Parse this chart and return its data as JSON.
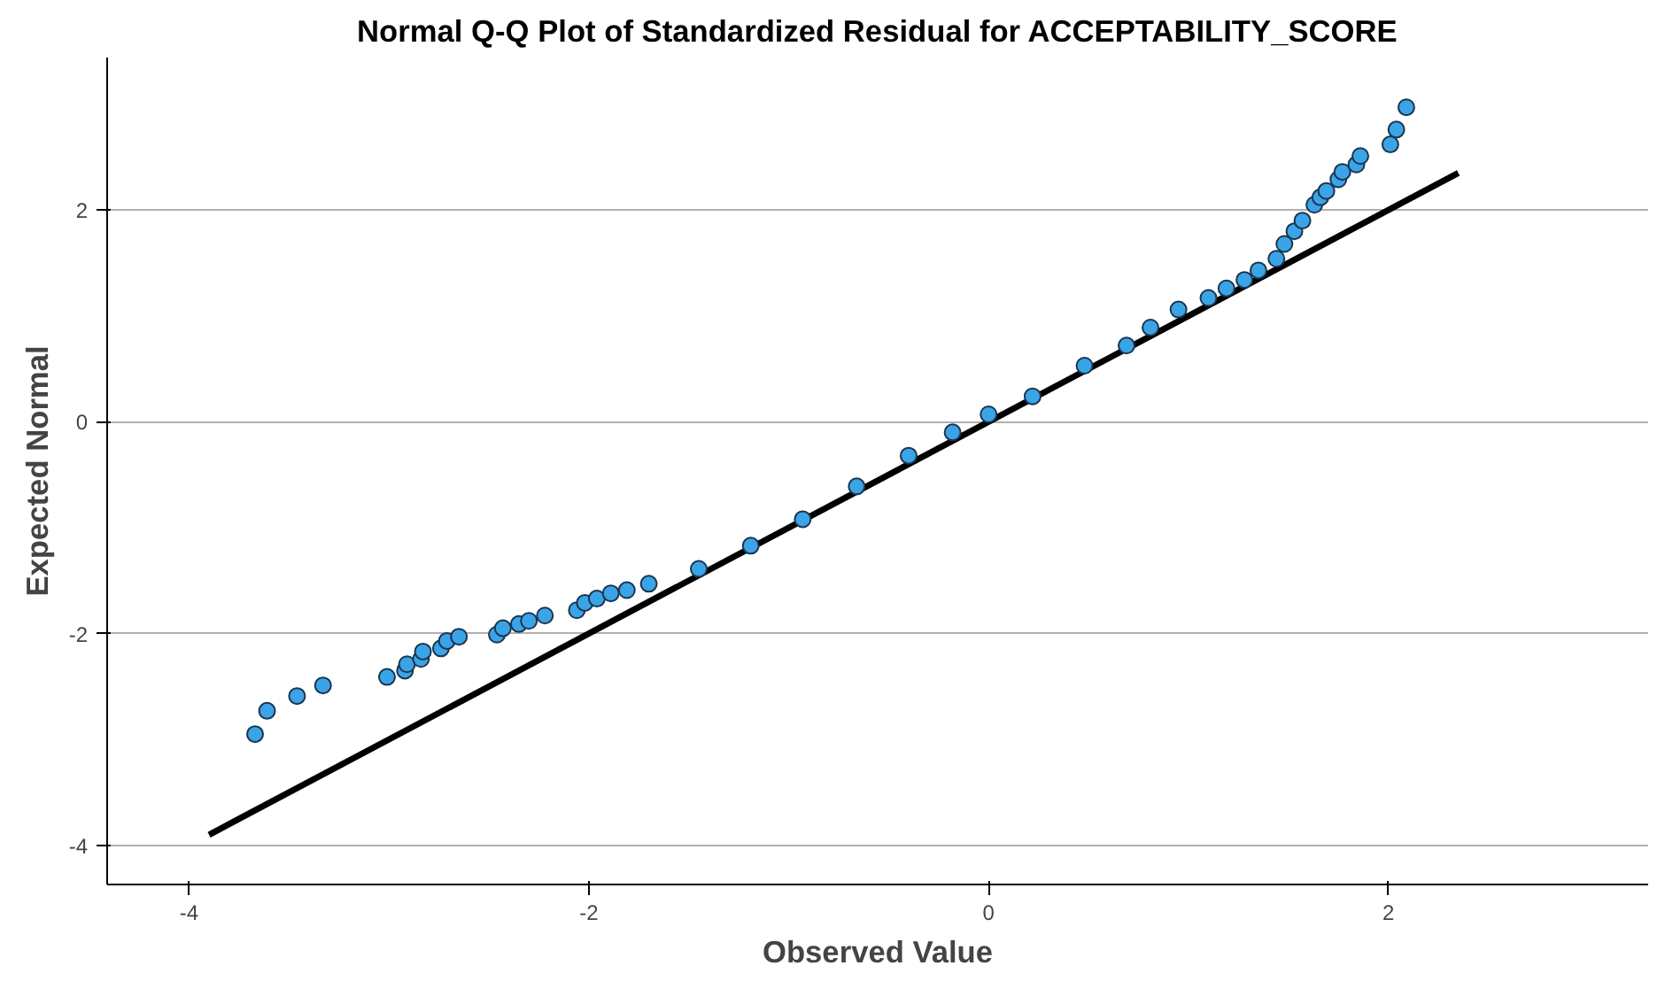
{
  "chart_data": {
    "type": "scatter",
    "title": "Normal Q-Q Plot of Standardized Residual for ACCEPTABILITY_SCORE",
    "xlabel": "Observed Value",
    "ylabel": "Expected Normal",
    "xlim": [
      -4.41,
      3.3
    ],
    "ylim": [
      -4.37,
      3.44
    ],
    "xticks": [
      -4,
      -2,
      0,
      2
    ],
    "yticks": [
      -4,
      -2,
      0,
      2
    ],
    "grid": "y",
    "series": [
      {
        "color": "#3ba4e6",
        "marker": "circle",
        "x": [
          -3.67,
          -3.61,
          -3.46,
          -3.33,
          -3.01,
          -2.92,
          -2.91,
          -2.84,
          -2.83,
          -2.74,
          -2.71,
          -2.65,
          -2.46,
          -2.43,
          -2.35,
          -2.3,
          -2.22,
          -2.06,
          -2.02,
          -1.96,
          -1.89,
          -1.81,
          -1.7,
          -1.45,
          -1.19,
          -0.93,
          -0.66,
          -0.4,
          -0.18,
          0.0,
          0.22,
          0.48,
          0.69,
          0.81,
          0.95,
          1.1,
          1.19,
          1.28,
          1.35,
          1.44,
          1.48,
          1.53,
          1.57,
          1.63,
          1.66,
          1.69,
          1.75,
          1.77,
          1.84,
          1.86,
          2.01,
          2.04,
          2.09
        ],
        "values": [
          -2.95,
          -2.73,
          -2.59,
          -2.49,
          -2.41,
          -2.35,
          -2.29,
          -2.24,
          -2.17,
          -2.14,
          -2.07,
          -2.03,
          -2.01,
          -1.95,
          -1.91,
          -1.88,
          -1.83,
          -1.78,
          -1.71,
          -1.67,
          -1.62,
          -1.59,
          -1.53,
          -1.39,
          -1.17,
          -0.92,
          -0.61,
          -0.32,
          -0.1,
          0.07,
          0.24,
          0.53,
          0.72,
          0.89,
          1.06,
          1.17,
          1.26,
          1.34,
          1.43,
          1.54,
          1.68,
          1.8,
          1.9,
          2.05,
          2.12,
          2.18,
          2.29,
          2.36,
          2.43,
          2.51,
          2.62,
          2.76,
          2.97
        ]
      },
      {
        "type": "line",
        "marker": "none",
        "color": "#000000",
        "x": [
          -3.9,
          2.35
        ],
        "values": [
          -3.9,
          2.35
        ]
      }
    ]
  }
}
